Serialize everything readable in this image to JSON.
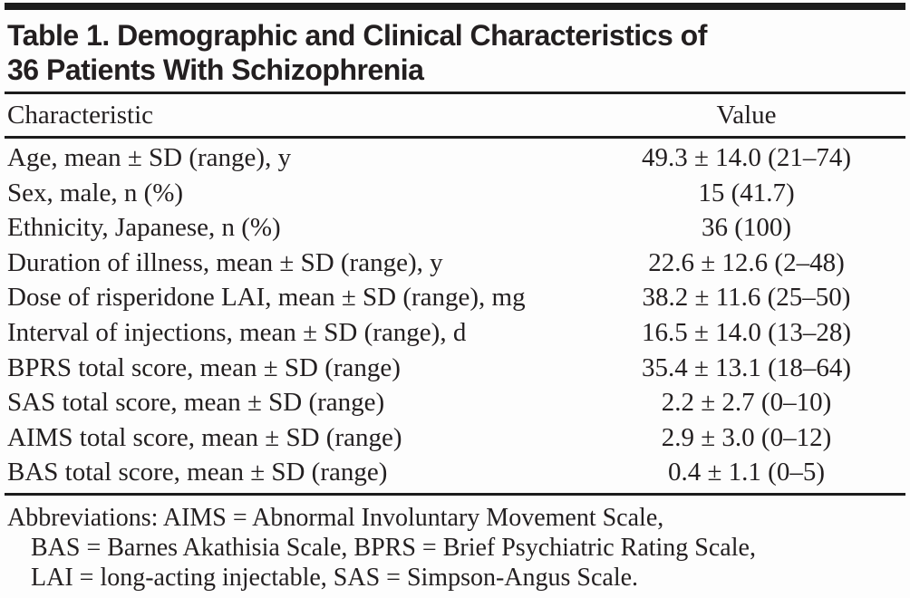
{
  "title": {
    "line1": "Table 1. Demographic and Clinical Characteristics of",
    "line2": "36 Patients With Schizophrenia"
  },
  "table": {
    "columns": {
      "characteristic": "Characteristic",
      "value": "Value"
    },
    "rows": [
      {
        "characteristic": "Age, mean ± SD (range), y",
        "value": "49.3 ± 14.0 (21–74)"
      },
      {
        "characteristic": "Sex, male, n (%)",
        "value": "15 (41.7)"
      },
      {
        "characteristic": "Ethnicity, Japanese, n (%)",
        "value": "36 (100)"
      },
      {
        "characteristic": "Duration of illness, mean ± SD (range), y",
        "value": "22.6 ± 12.6 (2–48)"
      },
      {
        "characteristic": "Dose of risperidone LAI, mean ± SD (range), mg",
        "value": "38.2 ± 11.6 (25–50)"
      },
      {
        "characteristic": "Interval of injections, mean ± SD (range), d",
        "value": "16.5 ± 14.0 (13–28)"
      },
      {
        "characteristic": "BPRS total score, mean ± SD (range)",
        "value": "35.4 ± 13.1 (18–64)"
      },
      {
        "characteristic": "SAS total score, mean ± SD (range)",
        "value": "2.2 ± 2.7 (0–10)"
      },
      {
        "characteristic": "AIMS total score, mean ± SD (range)",
        "value": "2.9 ± 3.0 (0–12)"
      },
      {
        "characteristic": "BAS total score, mean ± SD (range)",
        "value": "0.4 ± 1.1 (0–5)"
      }
    ]
  },
  "footnote": {
    "lines": [
      "Abbreviations: AIMS = Abnormal Involuntary Movement Scale,",
      "BAS = Barnes Akathisia Scale, BPRS = Brief Psychiatric Rating Scale,",
      "LAI = long-acting injectable, SAS = Simpson-Angus Scale."
    ]
  },
  "colors": {
    "ink": "#231f20",
    "rule": "#1c1c1c",
    "background": "#fdfdfd"
  }
}
